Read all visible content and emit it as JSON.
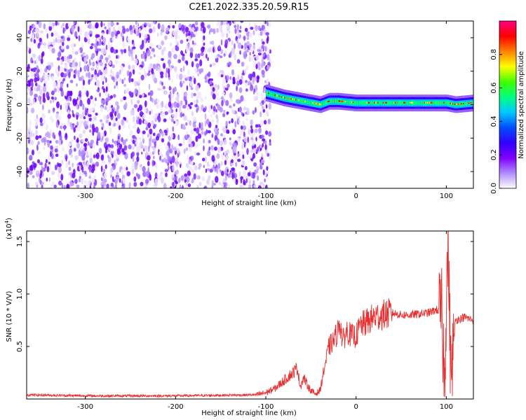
{
  "title": "C2E1.2022.335.20.59.R15",
  "chart_data": [
    {
      "type": "heatmap",
      "panel": "top",
      "xlabel": "Height of straight line (km)",
      "ylabel": "Frequency (Hz)",
      "xlim": [
        -365,
        130
      ],
      "ylim": [
        -50,
        50
      ],
      "xticks": [
        -300,
        -200,
        -100,
        0,
        100
      ],
      "yticks": [
        -40,
        -20,
        0,
        20,
        40
      ],
      "colorbar": {
        "label": "Normalized spectral amplitude",
        "range": [
          0,
          1
        ],
        "ticks": [
          "0.0",
          "0.2",
          "0.4",
          "0.6",
          "0.8"
        ],
        "colors": [
          "#ffffff",
          "#b08cff",
          "#8000ff",
          "#3000ff",
          "#0050ff",
          "#00c8ff",
          "#00ff80",
          "#40ff00",
          "#ffff00",
          "#ff8000",
          "#ff0000",
          "#ff0080"
        ]
      },
      "regions": [
        {
          "name": "noise",
          "x": [
            -365,
            -95
          ],
          "y": [
            -50,
            50
          ],
          "amplitude": [
            0.0,
            0.4
          ]
        },
        {
          "name": "signal-band",
          "x": [
            -100,
            130
          ],
          "y": [
            -2,
            6
          ],
          "amplitude": [
            0.4,
            1.0
          ]
        }
      ],
      "band_center": {
        "x": [
          -100,
          -80,
          -60,
          -40,
          -30,
          -20,
          0,
          20,
          50,
          80,
          100,
          110,
          130
        ],
        "y": [
          7,
          4,
          2,
          0,
          2,
          2,
          1,
          1,
          1,
          1,
          1,
          0,
          1
        ]
      }
    },
    {
      "type": "line",
      "panel": "bottom",
      "xlabel": "Height of straight line (km)",
      "ylabel": "SNR (10 * V/V)",
      "yscale_label": "(x10",
      "yscale_exp": "4",
      "yscale_close": ")",
      "xlim": [
        -365,
        130
      ],
      "ylim": [
        0,
        1.6
      ],
      "xticks": [
        -300,
        -200,
        -100,
        0,
        100
      ],
      "yticks": [
        "0.5",
        "1.0",
        "1.5"
      ],
      "ytick_values": [
        0.5,
        1.0,
        1.5
      ],
      "color": "#e83030",
      "series": [
        {
          "x": [
            -365,
            -300,
            -200,
            -110,
            -100,
            -90,
            -70,
            -65,
            -62,
            -58,
            -55,
            -50,
            -45,
            -40,
            -35,
            -30,
            -25,
            -20,
            -18,
            -15,
            -10,
            -5,
            0,
            5,
            10,
            20,
            30,
            40,
            50,
            60,
            80,
            90,
            95,
            98,
            100,
            102,
            105,
            110,
            120,
            130
          ],
          "y": [
            0.04,
            0.03,
            0.03,
            0.04,
            0.06,
            0.1,
            0.25,
            0.3,
            0.12,
            0.2,
            0.15,
            0.08,
            0.05,
            0.08,
            0.3,
            0.5,
            0.55,
            0.65,
            0.75,
            0.55,
            0.65,
            0.6,
            0.6,
            0.7,
            0.72,
            0.78,
            0.8,
            0.82,
            0.8,
            0.8,
            0.82,
            0.85,
            0.8,
            0.2,
            0.95,
            1.5,
            0.2,
            0.75,
            0.78,
            0.75
          ]
        }
      ]
    }
  ]
}
